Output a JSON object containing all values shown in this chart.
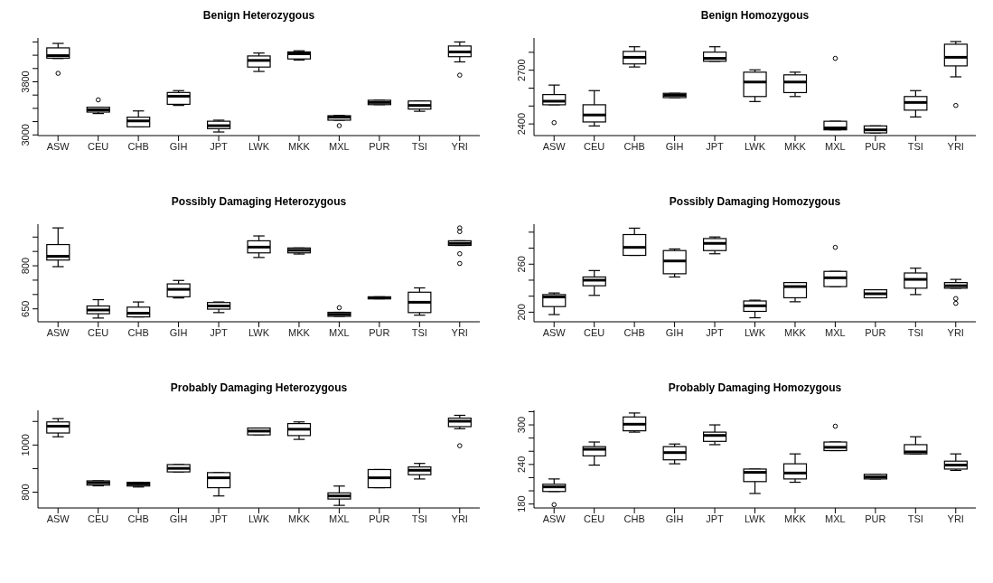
{
  "chart_data": [
    {
      "type": "box",
      "title": "Benign Heterozygous",
      "categories": [
        "ASW",
        "CEU",
        "CHB",
        "GIH",
        "JPT",
        "LWK",
        "MKK",
        "MXL",
        "PUR",
        "TSI",
        "YRI"
      ],
      "ylim": [
        2990,
        4460
      ],
      "yticks": [
        3000,
        {
          "value": 3200,
          "label": null
        },
        {
          "value": 3400,
          "label": null
        },
        {
          "value": 3600,
          "label": null
        },
        3800,
        {
          "value": 4000,
          "label": null
        },
        {
          "value": 4200,
          "label": null
        },
        {
          "value": 4400,
          "label": null
        }
      ],
      "boxes": [
        {
          "low": 4150,
          "q1": 4156,
          "median": 4194,
          "q3": 4311,
          "high": 4378,
          "outliers": [
            3928
          ]
        },
        {
          "low": 3322,
          "q1": 3344,
          "median": 3378,
          "q3": 3417,
          "high": 3417,
          "outliers": [
            3528
          ]
        },
        {
          "low": 3122,
          "q1": 3122,
          "median": 3211,
          "q3": 3267,
          "high": 3361
        },
        {
          "low": 3444,
          "q1": 3461,
          "median": 3583,
          "q3": 3639,
          "high": 3667
        },
        {
          "low": 3044,
          "q1": 3094,
          "median": 3139,
          "q3": 3206,
          "high": 3222
        },
        {
          "low": 3956,
          "q1": 4022,
          "median": 4122,
          "q3": 4189,
          "high": 4233
        },
        {
          "low": 4128,
          "q1": 4144,
          "median": 4222,
          "q3": 4250,
          "high": 4267
        },
        {
          "low": 3222,
          "q1": 3222,
          "median": 3267,
          "q3": 3289,
          "high": 3294,
          "outliers": [
            3139
          ]
        },
        {
          "low": 3456,
          "q1": 3456,
          "median": 3489,
          "q3": 3522,
          "high": 3522
        },
        {
          "low": 3356,
          "q1": 3389,
          "median": 3444,
          "q3": 3511,
          "high": 3511
        },
        {
          "low": 4100,
          "q1": 4178,
          "median": 4250,
          "q3": 4339,
          "high": 4400,
          "outliers": [
            3900
          ]
        }
      ]
    },
    {
      "type": "box",
      "title": "Benign Homozygous",
      "categories": [
        "ASW",
        "CEU",
        "CHB",
        "GIH",
        "JPT",
        "LWK",
        "MKK",
        "MXL",
        "PUR",
        "TSI",
        "YRI"
      ],
      "ylim": [
        2335,
        2880
      ],
      "yticks": [
        2400,
        {
          "value": 2500,
          "label": null
        },
        {
          "value": 2600,
          "label": null
        },
        2700,
        {
          "value": 2800,
          "label": null
        }
      ],
      "boxes": [
        {
          "low": 2507,
          "q1": 2507,
          "median": 2527,
          "q3": 2564,
          "high": 2617,
          "outliers": [
            2407
          ]
        },
        {
          "low": 2389,
          "q1": 2411,
          "median": 2450,
          "q3": 2507,
          "high": 2586
        },
        {
          "low": 2718,
          "q1": 2735,
          "median": 2772,
          "q3": 2805,
          "high": 2831
        },
        {
          "low": 2547,
          "q1": 2547,
          "median": 2560,
          "q3": 2571,
          "high": 2571
        },
        {
          "low": 2750,
          "q1": 2750,
          "median": 2766,
          "q3": 2801,
          "high": 2831
        },
        {
          "low": 2525,
          "q1": 2553,
          "median": 2634,
          "q3": 2689,
          "high": 2702
        },
        {
          "low": 2553,
          "q1": 2575,
          "median": 2634,
          "q3": 2674,
          "high": 2689
        },
        {
          "low": 2367,
          "q1": 2367,
          "median": 2378,
          "q3": 2415,
          "high": 2415,
          "outliers": [
            2766
          ]
        },
        {
          "low": 2350,
          "q1": 2350,
          "median": 2367,
          "q3": 2389,
          "high": 2389
        },
        {
          "low": 2439,
          "q1": 2477,
          "median": 2520,
          "q3": 2553,
          "high": 2586
        },
        {
          "low": 2663,
          "q1": 2724,
          "median": 2772,
          "q3": 2845,
          "high": 2860,
          "outliers": [
            2503
          ]
        }
      ]
    },
    {
      "type": "box",
      "title": "Possibly Damaging Heterozygous",
      "categories": [
        "ASW",
        "CEU",
        "CHB",
        "GIH",
        "JPT",
        "LWK",
        "MKK",
        "MXL",
        "PUR",
        "TSI",
        "YRI"
      ],
      "ylim": [
        605,
        945
      ],
      "yticks": [
        650,
        {
          "value": 700,
          "label": null
        },
        {
          "value": 750,
          "label": null
        },
        800,
        {
          "value": 850,
          "label": null
        },
        {
          "value": 900,
          "label": null
        }
      ],
      "boxes": [
        {
          "low": 797,
          "q1": 820,
          "median": 833,
          "q3": 874,
          "high": 932
        },
        {
          "low": 618,
          "q1": 633,
          "median": 646,
          "q3": 660,
          "high": 682
        },
        {
          "low": 622,
          "q1": 622,
          "median": 635,
          "q3": 656,
          "high": 674
        },
        {
          "low": 688,
          "q1": 692,
          "median": 718,
          "q3": 737,
          "high": 749
        },
        {
          "low": 637,
          "q1": 649,
          "median": 660,
          "q3": 672,
          "high": 674
        },
        {
          "low": 829,
          "q1": 845,
          "median": 865,
          "q3": 887,
          "high": 904
        },
        {
          "low": 841,
          "q1": 845,
          "median": 854,
          "q3": 862,
          "high": 862
        },
        {
          "low": 624,
          "q1": 624,
          "median": 631,
          "q3": 638,
          "high": 638,
          "outliers": [
            654
          ]
        },
        {
          "low": 685,
          "q1": 685,
          "median": 688,
          "q3": 692,
          "high": 692
        },
        {
          "low": 628,
          "q1": 637,
          "median": 673,
          "q3": 708,
          "high": 723
        },
        {
          "low": 871,
          "q1": 871,
          "median": 878,
          "q3": 887,
          "high": 887,
          "outliers": [
            932,
            919,
            842,
            808
          ]
        }
      ]
    },
    {
      "type": "box",
      "title": "Possibly Damaging Homozygous",
      "categories": [
        "ASW",
        "CEU",
        "CHB",
        "GIH",
        "JPT",
        "LWK",
        "MKK",
        "MXL",
        "PUR",
        "TSI",
        "YRI"
      ],
      "ylim": [
        188,
        310
      ],
      "yticks": [
        200,
        {
          "value": 220,
          "label": null
        },
        {
          "value": 240,
          "label": null
        },
        260,
        {
          "value": 280,
          "label": null
        },
        {
          "value": 300,
          "label": null
        }
      ],
      "boxes": [
        {
          "low": 197,
          "q1": 207,
          "median": 219,
          "q3": 222,
          "high": 224
        },
        {
          "low": 221,
          "q1": 233,
          "median": 240,
          "q3": 244,
          "high": 252
        },
        {
          "low": 271,
          "q1": 271,
          "median": 281,
          "q3": 297,
          "high": 305
        },
        {
          "low": 244,
          "q1": 248,
          "median": 264,
          "q3": 277,
          "high": 279
        },
        {
          "low": 273,
          "q1": 277,
          "median": 286,
          "q3": 292,
          "high": 294
        },
        {
          "low": 193,
          "q1": 201,
          "median": 208,
          "q3": 214,
          "high": 215
        },
        {
          "low": 213,
          "q1": 218,
          "median": 232,
          "q3": 237,
          "high": 237
        },
        {
          "low": 232,
          "q1": 232,
          "median": 243,
          "q3": 251,
          "high": 251,
          "outliers": [
            281
          ]
        },
        {
          "low": 218,
          "q1": 218,
          "median": 223,
          "q3": 228,
          "high": 228
        },
        {
          "low": 222,
          "q1": 230,
          "median": 241,
          "q3": 249,
          "high": 255
        },
        {
          "low": 230,
          "q1": 230,
          "median": 233,
          "q3": 237,
          "high": 241,
          "outliers": [
            217,
            211
          ]
        }
      ]
    },
    {
      "type": "box",
      "title": "Probably Damaging Heterozygous",
      "categories": [
        "ASW",
        "CEU",
        "CHB",
        "GIH",
        "JPT",
        "LWK",
        "MKK",
        "MXL",
        "PUR",
        "TSI",
        "YRI"
      ],
      "ylim": [
        733,
        1147
      ],
      "yticks": [
        800,
        {
          "value": 900,
          "label": null
        },
        1000,
        {
          "value": 1100,
          "label": null
        }
      ],
      "boxes": [
        {
          "low": 1035,
          "q1": 1051,
          "median": 1080,
          "q3": 1098,
          "high": 1112
        },
        {
          "low": 827,
          "q1": 830,
          "median": 840,
          "q3": 848,
          "high": 848
        },
        {
          "low": 822,
          "q1": 826,
          "median": 835,
          "q3": 842,
          "high": 842
        },
        {
          "low": 886,
          "q1": 886,
          "median": 901,
          "q3": 917,
          "high": 917
        },
        {
          "low": 784,
          "q1": 819,
          "median": 861,
          "q3": 883,
          "high": 883
        },
        {
          "low": 1043,
          "q1": 1043,
          "median": 1059,
          "q3": 1072,
          "high": 1072
        },
        {
          "low": 1024,
          "q1": 1040,
          "median": 1067,
          "q3": 1091,
          "high": 1098
        },
        {
          "low": 744,
          "q1": 771,
          "median": 784,
          "q3": 797,
          "high": 826
        },
        {
          "low": 819,
          "q1": 819,
          "median": 861,
          "q3": 896,
          "high": 896
        },
        {
          "low": 856,
          "q1": 874,
          "median": 893,
          "q3": 907,
          "high": 922
        },
        {
          "low": 1069,
          "q1": 1078,
          "median": 1101,
          "q3": 1114,
          "high": 1126,
          "outliers": [
            997
          ]
        }
      ]
    },
    {
      "type": "box",
      "title": "Probably Damaging Homozygous",
      "categories": [
        "ASW",
        "CEU",
        "CHB",
        "GIH",
        "JPT",
        "LWK",
        "MKK",
        "MXL",
        "PUR",
        "TSI",
        "YRI"
      ],
      "ylim": [
        174,
        322
      ],
      "yticks": [
        180,
        {
          "value": 200,
          "label": null
        },
        {
          "value": 220,
          "label": null
        },
        240,
        {
          "value": 260,
          "label": null
        },
        {
          "value": 280,
          "label": null
        },
        300,
        {
          "value": 320,
          "label": null
        }
      ],
      "boxes": [
        {
          "low": 199,
          "q1": 199,
          "median": 206,
          "q3": 210,
          "high": 218,
          "outliers": [
            179
          ]
        },
        {
          "low": 239,
          "q1": 253,
          "median": 263,
          "q3": 267,
          "high": 274
        },
        {
          "low": 289,
          "q1": 291,
          "median": 301,
          "q3": 312,
          "high": 318
        },
        {
          "low": 241,
          "q1": 247,
          "median": 258,
          "q3": 267,
          "high": 271
        },
        {
          "low": 270,
          "q1": 275,
          "median": 284,
          "q3": 289,
          "high": 300
        },
        {
          "low": 196,
          "q1": 214,
          "median": 228,
          "q3": 233,
          "high": 233
        },
        {
          "low": 213,
          "q1": 218,
          "median": 227,
          "q3": 241,
          "high": 256
        },
        {
          "low": 261,
          "q1": 261,
          "median": 266,
          "q3": 274,
          "high": 274,
          "outliers": [
            298
          ]
        },
        {
          "low": 218,
          "q1": 218,
          "median": 221,
          "q3": 225,
          "high": 225
        },
        {
          "low": 256,
          "q1": 256,
          "median": 259,
          "q3": 270,
          "high": 282
        },
        {
          "low": 231,
          "q1": 233,
          "median": 239,
          "q3": 245,
          "high": 256
        }
      ]
    }
  ]
}
